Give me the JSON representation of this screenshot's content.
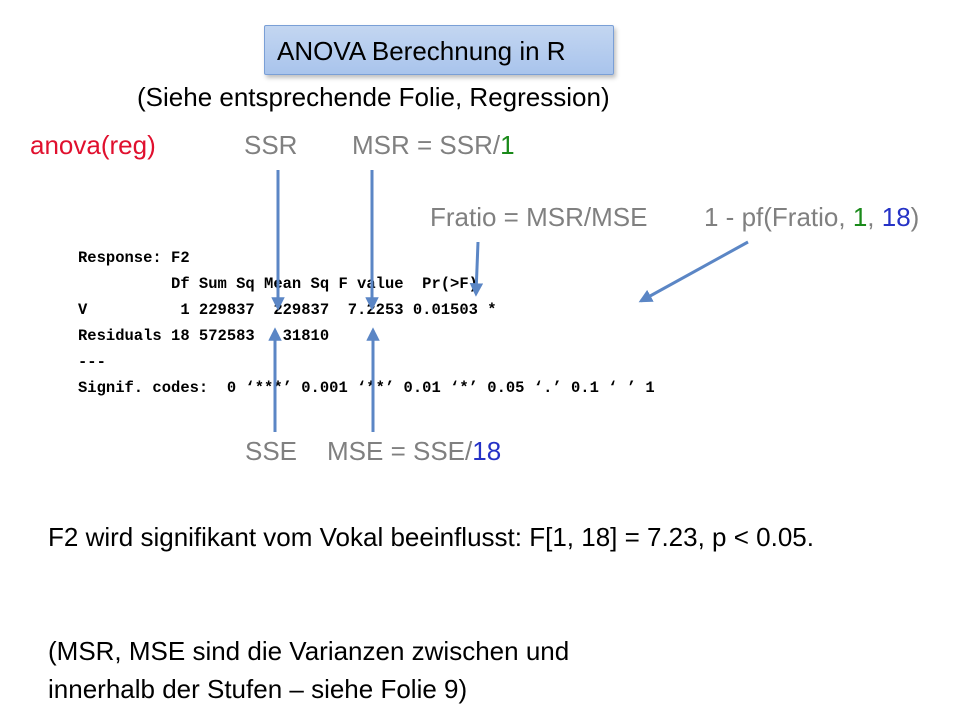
{
  "title": "ANOVA Berechnung in R",
  "subtitle": "(Siehe entsprechende Folie, Regression)",
  "top_row": {
    "command": "anova(reg)",
    "ssr": "SSR",
    "msr_prefix": "MSR = SSR/",
    "msr_df": "1"
  },
  "ratio_row": {
    "fratio": "Fratio = MSR/MSE",
    "pf_prefix": "1 - pf(Fratio, ",
    "pf_df1": "1",
    "pf_sep": ", ",
    "pf_df2": "18",
    "pf_close": ")"
  },
  "r_output": [
    "Response: F2",
    "          Df Sum Sq Mean Sq F value  Pr(>F)",
    "V          1 229837  229837  7.2253 0.01503 *",
    "Residuals 18 572583   31810",
    "---",
    "Signif. codes:  0 ‘***’ 0.001 ‘**’ 0.01 ‘*’ 0.05 ‘.’ 0.1 ‘ ’ 1"
  ],
  "bottom_row": {
    "sse": "SSE",
    "mse_prefix": "MSE = SSE/",
    "mse_df": "18"
  },
  "conclusion": "F2 wird signifikant vom Vokal beeinflusst: F[1, 18] = 7.23, p < 0.05.",
  "note_line1": "(MSR, MSE sind die Varianzen zwischen und",
  "note_line2": "innerhalb der Stufen – siehe Folie 9)",
  "colors": {
    "command": "#e0102e",
    "labels": "#808080",
    "df_green": "#1a8a1a",
    "df_blue": "#2532c6",
    "arrows": "#5b86c5",
    "title_box": "#b5cdef"
  }
}
